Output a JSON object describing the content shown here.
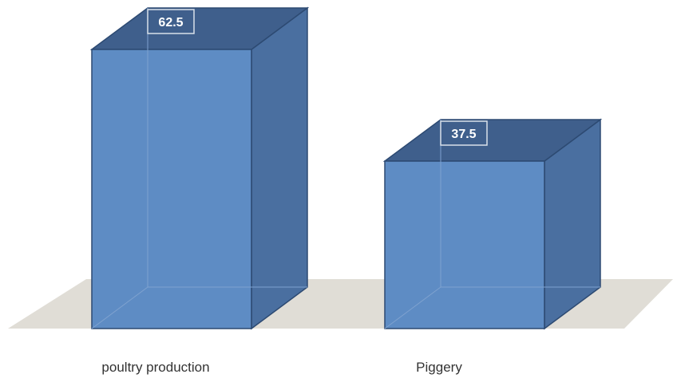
{
  "chart_data": {
    "type": "bar",
    "style": "3d",
    "categories": [
      "poultry production",
      "Piggery"
    ],
    "values": [
      62.5,
      37.5
    ],
    "data_labels": [
      "62.5",
      "37.5"
    ],
    "title": "",
    "xlabel": "",
    "ylabel": "",
    "ylim": [
      0,
      70
    ],
    "grid": false,
    "legend": "none",
    "colors": {
      "front": "#5e8cc4",
      "side": "#4a6fa0",
      "top": "#3f5f8c",
      "edge": "#2d4a72",
      "floor": "#e0ddd6",
      "label_box": "#3f5f8c",
      "label_border": "#d8e0ea"
    }
  }
}
